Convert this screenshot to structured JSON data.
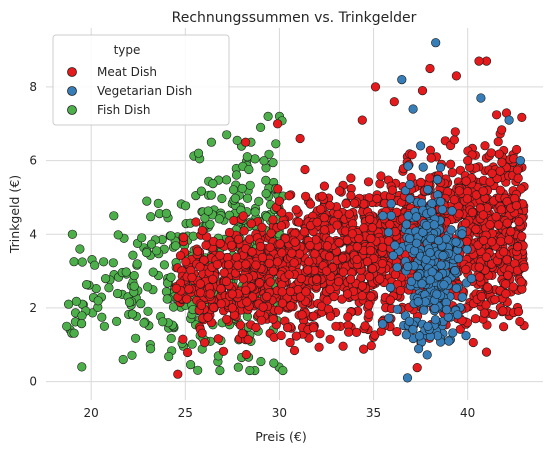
{
  "chart_data": {
    "type": "scatter",
    "title": "Rechnungssummen vs. Trinkgelder",
    "xlabel": "Preis (€)",
    "ylabel": "Trinkgeld (€)",
    "xlim": [
      17.6,
      44.0
    ],
    "ylim": [
      -0.5,
      9.6
    ],
    "xticks": [
      20,
      25,
      30,
      35,
      40
    ],
    "yticks": [
      0,
      2,
      4,
      6,
      8
    ],
    "grid": true,
    "legend": {
      "title": "type",
      "placement": "top-left"
    },
    "series": [
      {
        "name": "Meat Dish",
        "color": "#e41a1c",
        "x_range": [
          24.5,
          43.0
        ],
        "y_range": [
          0.0,
          8.8
        ],
        "approx_count": 1900,
        "points": [
          [
            41.0,
            8.7
          ],
          [
            40.6,
            8.7
          ],
          [
            39.4,
            8.3
          ],
          [
            38.0,
            8.5
          ],
          [
            35.1,
            8.0
          ],
          [
            36.1,
            7.6
          ],
          [
            37.6,
            7.9
          ],
          [
            34.4,
            7.1
          ],
          [
            29.9,
            7.0
          ],
          [
            31.1,
            6.6
          ],
          [
            28.2,
            6.5
          ],
          [
            42.6,
            6.3
          ],
          [
            25.9,
            4.1
          ],
          [
            24.6,
            0.2
          ],
          [
            43.0,
            3.1
          ],
          [
            42.7,
            1.9
          ],
          [
            41.0,
            0.8
          ],
          [
            30.0,
            4.9
          ],
          [
            32.5,
            3.0
          ],
          [
            36.0,
            5.2
          ],
          [
            38.5,
            4.2
          ],
          [
            33.0,
            1.5
          ],
          [
            27.5,
            2.0
          ],
          [
            40.0,
            6.0
          ]
        ]
      },
      {
        "name": "Vegetarian Dish",
        "color": "#377eb8",
        "x_range": [
          34.0,
          42.8
        ],
        "y_range": [
          0.0,
          9.2
        ],
        "approx_count": 280,
        "points": [
          [
            38.3,
            9.2
          ],
          [
            36.5,
            8.2
          ],
          [
            37.1,
            7.4
          ],
          [
            40.7,
            7.7
          ],
          [
            42.2,
            7.1
          ],
          [
            42.8,
            6.0
          ],
          [
            37.5,
            6.4
          ],
          [
            36.8,
            0.1
          ],
          [
            39.0,
            1.1
          ],
          [
            35.5,
            4.5
          ],
          [
            38.0,
            3.5
          ],
          [
            40.2,
            2.8
          ]
        ]
      },
      {
        "name": "Fish Dish",
        "color": "#4daf4a",
        "x_range": [
          18.5,
          30.2
        ],
        "y_range": [
          0.3,
          7.2
        ],
        "approx_count": 420,
        "points": [
          [
            18.7,
            1.5
          ],
          [
            18.8,
            2.1
          ],
          [
            19.0,
            4.0
          ],
          [
            19.4,
            3.6
          ],
          [
            19.5,
            0.4
          ],
          [
            20.7,
            1.5
          ],
          [
            21.2,
            4.5
          ],
          [
            21.7,
            0.6
          ],
          [
            25.7,
            6.2
          ],
          [
            27.2,
            6.7
          ],
          [
            29.4,
            7.2
          ],
          [
            29.0,
            6.9
          ]
        ]
      }
    ]
  }
}
